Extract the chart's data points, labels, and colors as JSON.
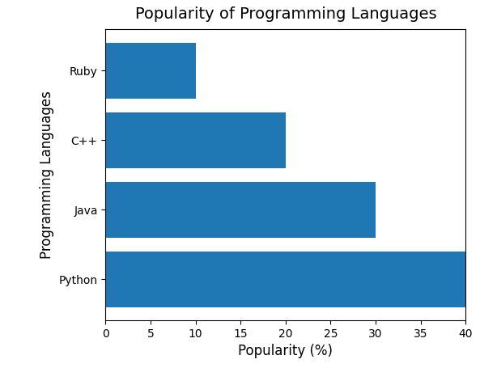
{
  "languages": [
    "Python",
    "Java",
    "C++",
    "Ruby"
  ],
  "values": [
    40,
    30,
    20,
    10
  ],
  "bar_color": "#1f77b4",
  "title": "Popularity of Programming Languages",
  "xlabel": "Popularity (%)",
  "ylabel": "Programming Languages",
  "xlim": [
    0,
    40
  ],
  "title_fontsize": 14,
  "label_fontsize": 12,
  "tick_fontsize": 10,
  "figwidth": 5.93,
  "figheight": 4.55,
  "dpi": 100
}
